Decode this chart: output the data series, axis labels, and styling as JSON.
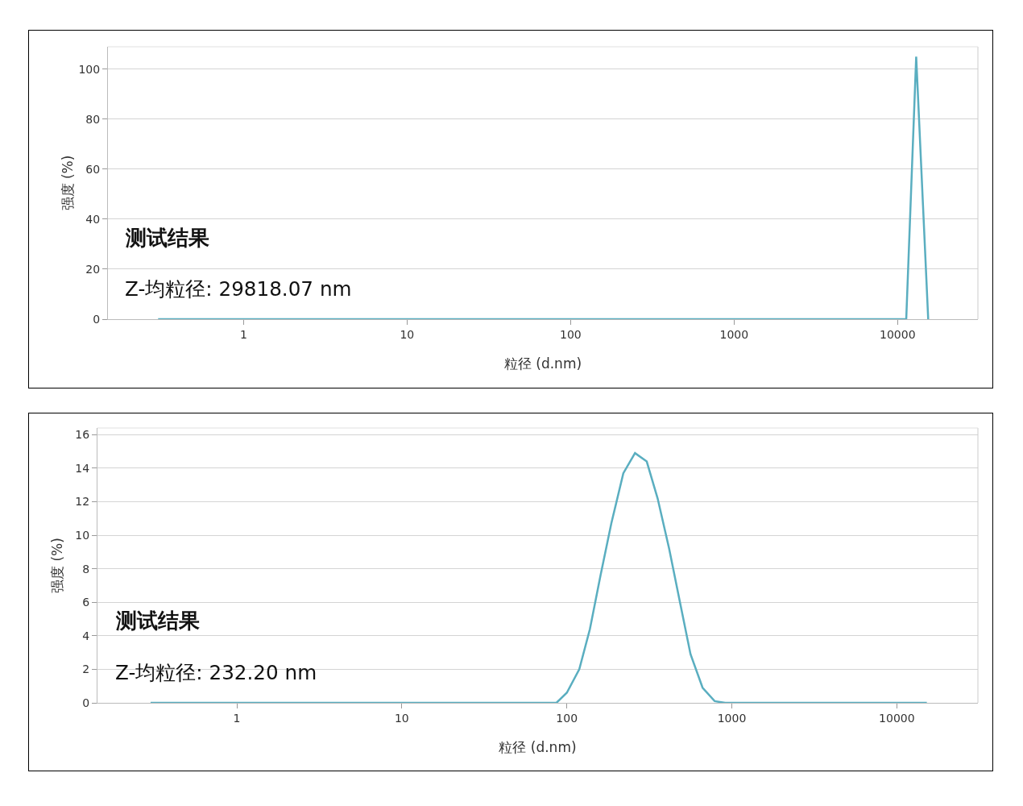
{
  "chart_data": [
    {
      "type": "line",
      "xlabel": "粒径 (d.nm)",
      "ylabel": "强度 (%)",
      "log": "x",
      "grid": "y",
      "marker": "none",
      "line_style": "solid",
      "annotations": [
        "测试结果",
        "Z-均粒径: 29818.07 nm"
      ],
      "xlim": [
        0.148,
        31000
      ],
      "xticks": [
        1,
        10,
        100,
        1000,
        10000
      ],
      "ylim": [
        0,
        109
      ],
      "yticks": [
        0,
        20,
        40,
        60,
        80,
        100
      ],
      "series": [
        {
          "color": "#5aaec0",
          "x": [
            0.3,
            11300,
            13000,
            15400
          ],
          "values": [
            0,
            0,
            105,
            0
          ]
        }
      ]
    },
    {
      "type": "line",
      "xlabel": "粒径 (d.nm)",
      "ylabel": "强度 (%)",
      "log": "x",
      "grid": "y",
      "marker": "none",
      "line_style": "solid",
      "annotations": [
        "测试结果",
        "Z-均粒径: 232.20 nm"
      ],
      "xlim": [
        0.143,
        31000
      ],
      "xticks": [
        1,
        10,
        100,
        1000,
        10000
      ],
      "ylim": [
        0,
        16.4
      ],
      "yticks": [
        0,
        2,
        4,
        6,
        8,
        10,
        12,
        14,
        16
      ],
      "series": [
        {
          "color": "#5aaec0",
          "x": [
            0.3,
            86.5,
            100,
            119,
            138,
            160,
            186,
            220,
            259,
            305,
            355,
            417,
            485,
            562,
            665,
            787,
            912,
            15200
          ],
          "values": [
            0,
            0,
            0.6,
            2,
            4.4,
            7.6,
            10.7,
            13.7,
            14.9,
            14.4,
            12.2,
            9.2,
            6,
            2.9,
            0.9,
            0.1,
            0,
            0
          ]
        }
      ]
    }
  ]
}
